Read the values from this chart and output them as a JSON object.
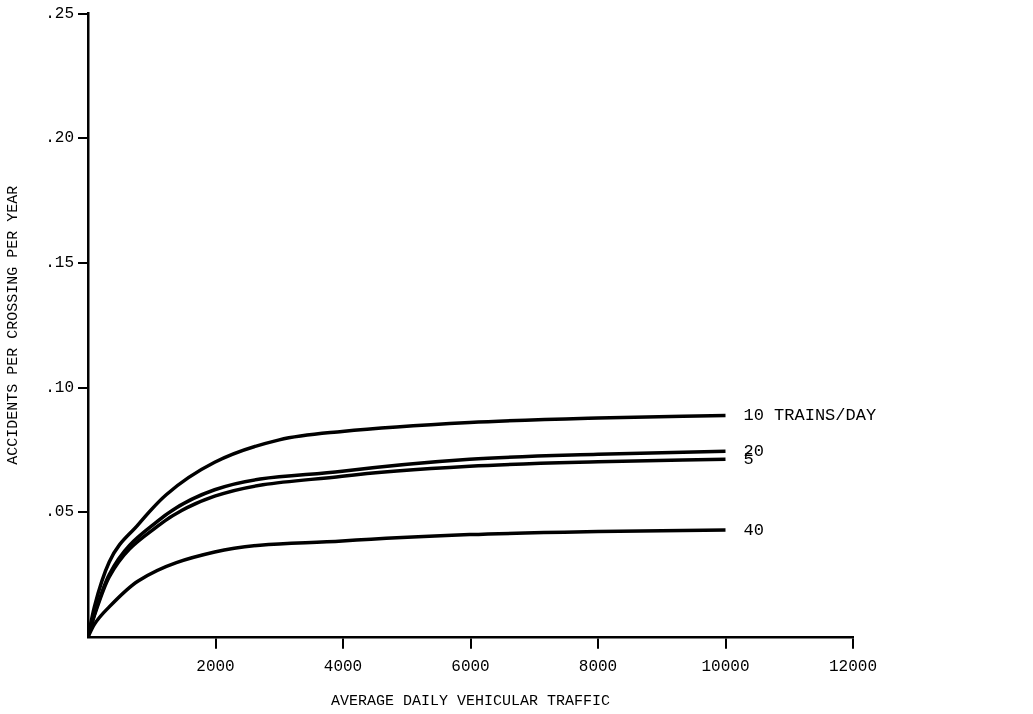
{
  "chart_data": {
    "type": "line",
    "xlabel": "AVERAGE DAILY VEHICULAR TRAFFIC",
    "ylabel": "ACCIDENTS PER CROSSING PER YEAR",
    "xlim": [
      0,
      12000
    ],
    "xticks": [
      2000,
      4000,
      6000,
      8000,
      10000,
      12000
    ],
    "ylim": [
      0,
      0.25
    ],
    "yticks": [
      {
        "value": 0.05,
        "label": ".05"
      },
      {
        "value": 0.1,
        "label": ".10"
      },
      {
        "value": 0.15,
        "label": ".15"
      },
      {
        "value": 0.2,
        "label": ".20"
      },
      {
        "value": 0.25,
        "label": ".25"
      }
    ],
    "grid": false,
    "legend": false,
    "marker": "none",
    "line_style": "solid",
    "series": [
      {
        "name": "10 TRAINS/DAY",
        "color": "#000000",
        "x": [
          0,
          100,
          333,
          787,
          1227,
          1987,
          3000,
          3987,
          5987,
          8000,
          10000
        ],
        "values": [
          0,
          0.012,
          0.03,
          0.045,
          0.057,
          0.07,
          0.079,
          0.0824,
          0.086,
          0.0878,
          0.0888
        ]
      },
      {
        "name": "20",
        "color": "#000000",
        "x": [
          0,
          100,
          333,
          1093,
          1987,
          3987,
          5987,
          8000,
          10000
        ],
        "values": [
          0,
          0.009,
          0.025,
          0.0464,
          0.059,
          0.0664,
          0.0712,
          0.0732,
          0.0744
        ]
      },
      {
        "name": "5",
        "color": "#000000",
        "x": [
          0,
          100,
          333,
          1093,
          1987,
          3987,
          5987,
          8000,
          10000
        ],
        "values": [
          0,
          0.0085,
          0.024,
          0.0444,
          0.0564,
          0.0644,
          0.0684,
          0.0702,
          0.0712
        ]
      },
      {
        "name": "40",
        "color": "#000000",
        "x": [
          0,
          100,
          333,
          787,
          1987,
          3987,
          5987,
          8000,
          10000
        ],
        "values": [
          0,
          0.005,
          0.012,
          0.0224,
          0.034,
          0.0384,
          0.041,
          0.0422,
          0.0428
        ]
      }
    ]
  }
}
